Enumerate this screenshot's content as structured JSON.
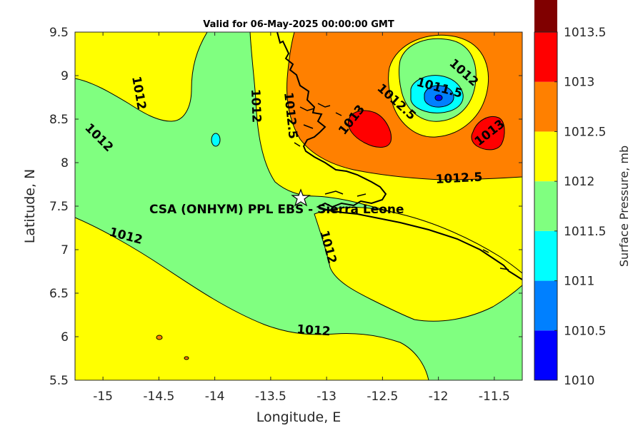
{
  "title": "Valid for 06-May-2025 00:00:00 GMT",
  "xlabel": "Longitude, E",
  "ylabel": "Latitude, N",
  "site_label": "CSA (ONHYM) PPL EBS  - Sierra Leone",
  "colorbar": {
    "label": "Surface Pressure, mb",
    "ticks": [
      "1013.5",
      "1013",
      "1012.5",
      "1012",
      "1011.5",
      "1011",
      "1010.5",
      "1010"
    ]
  },
  "contour_labels": [
    {
      "text": "1012"
    },
    {
      "text": "1012"
    },
    {
      "text": "1012"
    },
    {
      "text": "1012.5"
    },
    {
      "text": "1013"
    },
    {
      "text": "1012.5"
    },
    {
      "text": "1011.5"
    },
    {
      "text": "1012"
    },
    {
      "text": "1013"
    },
    {
      "text": "1012.5"
    },
    {
      "text": "1012"
    },
    {
      "text": "1012"
    },
    {
      "text": "1012"
    }
  ],
  "chart_data": {
    "type": "heatmap",
    "title": "Valid for 06-May-2025 00:00:00 GMT",
    "xlabel": "Longitude, E",
    "ylabel": "Latitude, N",
    "xlim": [
      -15.25,
      -11.25
    ],
    "ylim": [
      5.5,
      9.5
    ],
    "x_ticks": [
      "-15",
      "-14.5",
      "-14",
      "-13.5",
      "-13",
      "-12.5",
      "-12",
      "-11.5"
    ],
    "y_ticks": [
      "5.5",
      "6",
      "6.5",
      "7",
      "7.5",
      "8",
      "8.5",
      "9",
      "9.5"
    ],
    "color_levels": [
      1010,
      1010.5,
      1011,
      1011.5,
      1012,
      1012.5,
      1013,
      1013.5
    ],
    "level_colors": [
      "#0000ff",
      "#0080ff",
      "#00ffff",
      "#80ff80",
      "#ffff00",
      "#ff8000",
      "#ff0000",
      "#800000"
    ],
    "site": {
      "lon": -13.25,
      "lat": 7.6,
      "marker": "star"
    }
  }
}
